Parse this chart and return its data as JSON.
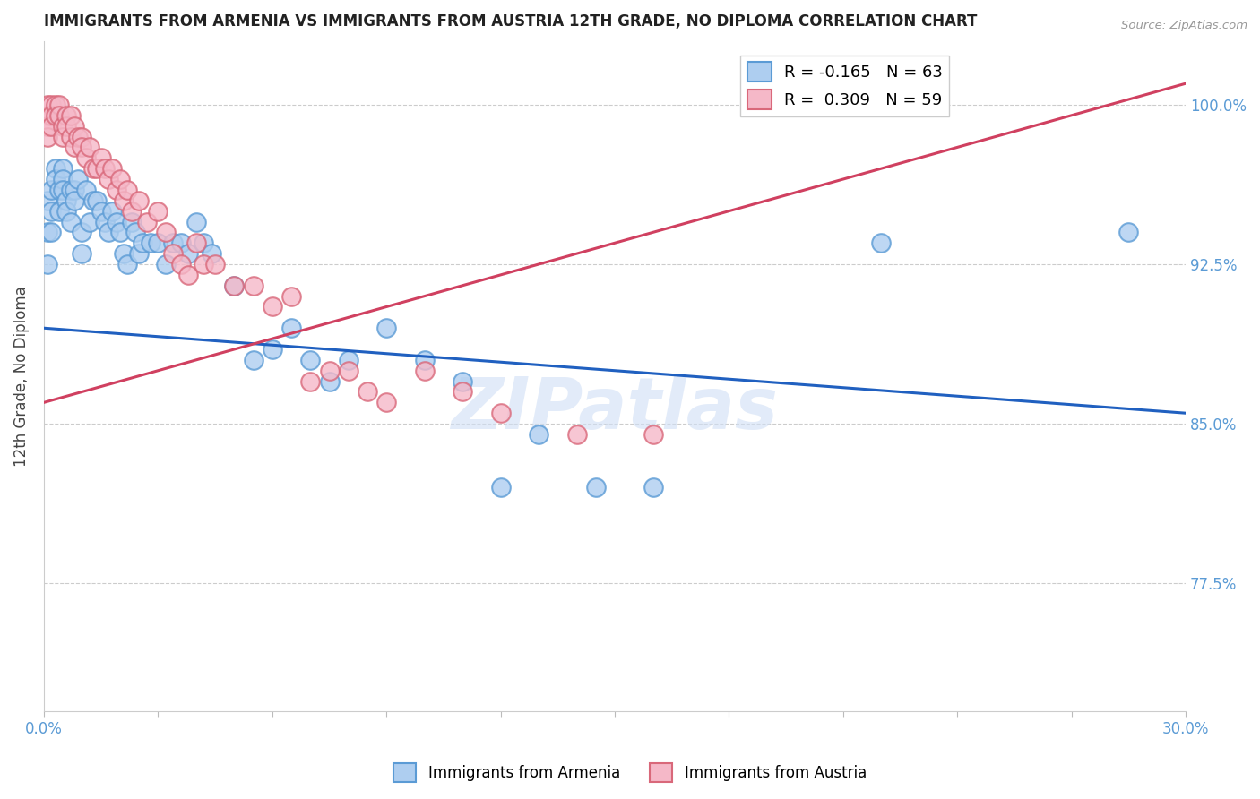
{
  "title": "IMMIGRANTS FROM ARMENIA VS IMMIGRANTS FROM AUSTRIA 12TH GRADE, NO DIPLOMA CORRELATION CHART",
  "source": "Source: ZipAtlas.com",
  "ylabel_label": "12th Grade, No Diploma",
  "ytick_labels": [
    "100.0%",
    "92.5%",
    "85.0%",
    "77.5%"
  ],
  "ytick_values": [
    1.0,
    0.925,
    0.85,
    0.775
  ],
  "xmin": 0.0,
  "xmax": 0.3,
  "ymin": 0.715,
  "ymax": 1.03,
  "legend_blue_r": "R = -0.165",
  "legend_blue_n": "N = 63",
  "legend_pink_r": "R =  0.309",
  "legend_pink_n": "N = 59",
  "blue_color": "#aecef0",
  "blue_edge_color": "#5b9bd5",
  "pink_color": "#f5b8c8",
  "pink_edge_color": "#d9687a",
  "blue_line_color": "#2060c0",
  "pink_line_color": "#d04060",
  "watermark_color": "#d0dff5",
  "blue_scatter_x": [
    0.001,
    0.001,
    0.001,
    0.002,
    0.002,
    0.002,
    0.003,
    0.003,
    0.004,
    0.004,
    0.005,
    0.005,
    0.005,
    0.006,
    0.006,
    0.007,
    0.007,
    0.008,
    0.008,
    0.009,
    0.01,
    0.01,
    0.011,
    0.012,
    0.013,
    0.014,
    0.015,
    0.016,
    0.017,
    0.018,
    0.019,
    0.02,
    0.021,
    0.022,
    0.023,
    0.024,
    0.025,
    0.026,
    0.028,
    0.03,
    0.032,
    0.034,
    0.036,
    0.038,
    0.04,
    0.042,
    0.044,
    0.05,
    0.055,
    0.06,
    0.065,
    0.07,
    0.075,
    0.08,
    0.09,
    0.1,
    0.11,
    0.12,
    0.13,
    0.145,
    0.16,
    0.22,
    0.285
  ],
  "blue_scatter_y": [
    0.955,
    0.94,
    0.925,
    0.96,
    0.95,
    0.94,
    0.97,
    0.965,
    0.96,
    0.95,
    0.97,
    0.965,
    0.96,
    0.955,
    0.95,
    0.96,
    0.945,
    0.96,
    0.955,
    0.965,
    0.94,
    0.93,
    0.96,
    0.945,
    0.955,
    0.955,
    0.95,
    0.945,
    0.94,
    0.95,
    0.945,
    0.94,
    0.93,
    0.925,
    0.945,
    0.94,
    0.93,
    0.935,
    0.935,
    0.935,
    0.925,
    0.935,
    0.935,
    0.93,
    0.945,
    0.935,
    0.93,
    0.915,
    0.88,
    0.885,
    0.895,
    0.88,
    0.87,
    0.88,
    0.895,
    0.88,
    0.87,
    0.82,
    0.845,
    0.82,
    0.82,
    0.935,
    0.94
  ],
  "pink_scatter_x": [
    0.001,
    0.001,
    0.001,
    0.001,
    0.002,
    0.002,
    0.002,
    0.003,
    0.003,
    0.004,
    0.004,
    0.005,
    0.005,
    0.006,
    0.006,
    0.007,
    0.007,
    0.008,
    0.008,
    0.009,
    0.01,
    0.01,
    0.011,
    0.012,
    0.013,
    0.014,
    0.015,
    0.016,
    0.017,
    0.018,
    0.019,
    0.02,
    0.021,
    0.022,
    0.023,
    0.025,
    0.027,
    0.03,
    0.032,
    0.034,
    0.036,
    0.038,
    0.04,
    0.042,
    0.045,
    0.05,
    0.055,
    0.06,
    0.065,
    0.07,
    0.075,
    0.08,
    0.085,
    0.09,
    0.1,
    0.11,
    0.12,
    0.14,
    0.16
  ],
  "pink_scatter_y": [
    1.0,
    0.995,
    0.99,
    0.985,
    1.0,
    0.995,
    0.99,
    1.0,
    0.995,
    1.0,
    0.995,
    0.99,
    0.985,
    0.995,
    0.99,
    0.995,
    0.985,
    0.99,
    0.98,
    0.985,
    0.985,
    0.98,
    0.975,
    0.98,
    0.97,
    0.97,
    0.975,
    0.97,
    0.965,
    0.97,
    0.96,
    0.965,
    0.955,
    0.96,
    0.95,
    0.955,
    0.945,
    0.95,
    0.94,
    0.93,
    0.925,
    0.92,
    0.935,
    0.925,
    0.925,
    0.915,
    0.915,
    0.905,
    0.91,
    0.87,
    0.875,
    0.875,
    0.865,
    0.86,
    0.875,
    0.865,
    0.855,
    0.845,
    0.845
  ],
  "blue_line_x": [
    0.0,
    0.3
  ],
  "blue_line_y": [
    0.895,
    0.855
  ],
  "pink_line_x": [
    0.0,
    0.3
  ],
  "pink_line_y": [
    0.86,
    1.01
  ]
}
